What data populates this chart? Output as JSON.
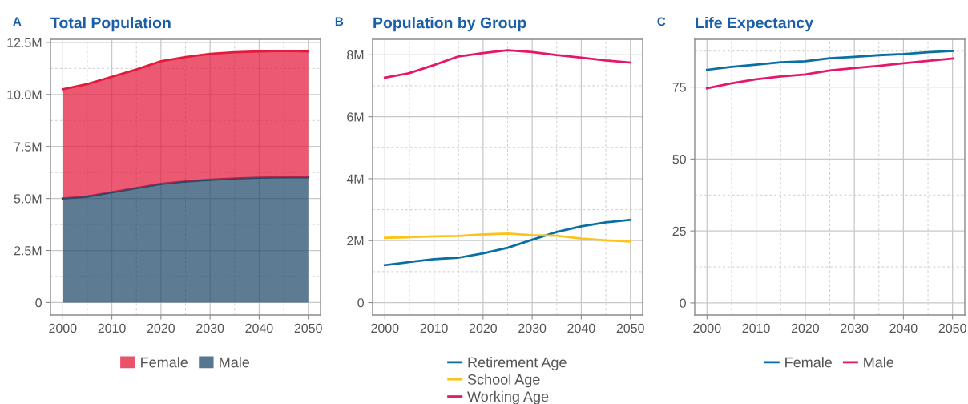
{
  "chart_data": [
    {
      "type": "area",
      "title": "Total Population",
      "annotations": [
        "A"
      ],
      "stacked": true,
      "x": [
        2000,
        2005,
        2010,
        2015,
        2020,
        2025,
        2030,
        2035,
        2040,
        2045,
        2050
      ],
      "series": [
        {
          "name": "Male",
          "color": "#1f4a6b",
          "values": [
            5.0,
            5.1,
            5.3,
            5.5,
            5.7,
            5.82,
            5.9,
            5.96,
            6.0,
            6.02,
            6.02
          ]
        },
        {
          "name": "Female",
          "color": "#e31a3c",
          "values": [
            5.25,
            5.4,
            5.55,
            5.7,
            5.9,
            5.98,
            6.05,
            6.07,
            6.07,
            6.08,
            6.05
          ]
        }
      ],
      "xlim": [
        1997.5,
        2052.5
      ],
      "xticks": [
        2000,
        2010,
        2020,
        2030,
        2040,
        2050
      ],
      "ylim": [
        -0.6,
        12.65
      ],
      "yticks": [
        0,
        {
          "value": 2.5,
          "label": "2.5M"
        },
        {
          "value": 5,
          "label": "5.0M"
        },
        {
          "value": 7.5,
          "label": "7.5M"
        },
        {
          "value": 10,
          "label": "10.0M"
        },
        {
          "value": 12.5,
          "label": "12.5M"
        }
      ],
      "grid": true,
      "legend": "bottom"
    },
    {
      "type": "line",
      "title": "Population by Group",
      "annotations": [
        "B"
      ],
      "x": [
        2000,
        2005,
        2010,
        2015,
        2020,
        2025,
        2030,
        2035,
        2040,
        2045,
        2050
      ],
      "series": [
        {
          "name": "Retirement Age",
          "color": "#0a6fa3",
          "values": [
            1.21,
            1.31,
            1.4,
            1.45,
            1.59,
            1.77,
            2.03,
            2.28,
            2.46,
            2.59,
            2.67
          ]
        },
        {
          "name": "School Age",
          "color": "#fcc41a",
          "values": [
            2.09,
            2.11,
            2.14,
            2.15,
            2.2,
            2.23,
            2.18,
            2.16,
            2.07,
            2.01,
            1.97
          ]
        },
        {
          "name": "Working Age",
          "color": "#e5176b",
          "values": [
            7.26,
            7.41,
            7.67,
            7.95,
            8.06,
            8.15,
            8.09,
            7.99,
            7.91,
            7.82,
            7.75
          ]
        }
      ],
      "xlim": [
        1997.5,
        2052.5
      ],
      "xticks": [
        2000,
        2010,
        2020,
        2030,
        2040,
        2050
      ],
      "ylim": [
        -0.4,
        8.5
      ],
      "yticks": [
        0,
        {
          "value": 2,
          "label": "2M"
        },
        {
          "value": 4,
          "label": "4M"
        },
        {
          "value": 6,
          "label": "6M"
        },
        {
          "value": 8,
          "label": "8M"
        }
      ],
      "grid": true,
      "legend": "bottom"
    },
    {
      "type": "line",
      "title": "Life Expectancy",
      "annotations": [
        "C"
      ],
      "x": [
        2000,
        2005,
        2010,
        2015,
        2020,
        2025,
        2030,
        2035,
        2040,
        2045,
        2050
      ],
      "series": [
        {
          "name": "Female",
          "color": "#0a6fa3",
          "values": [
            81.0,
            82.0,
            82.8,
            83.6,
            84.0,
            85.0,
            85.5,
            86.1,
            86.5,
            87.1,
            87.6
          ]
        },
        {
          "name": "Male",
          "color": "#e5176b",
          "values": [
            74.6,
            76.3,
            77.7,
            78.7,
            79.4,
            80.8,
            81.6,
            82.4,
            83.3,
            84.1,
            84.9
          ]
        }
      ],
      "xlim": [
        1997.5,
        2052.5
      ],
      "xticks": [
        2000,
        2010,
        2020,
        2030,
        2040,
        2050
      ],
      "ylim": [
        -4.2,
        91.6
      ],
      "yticks": [
        0,
        25,
        50,
        75
      ],
      "grid": true,
      "legend": "bottom"
    }
  ]
}
